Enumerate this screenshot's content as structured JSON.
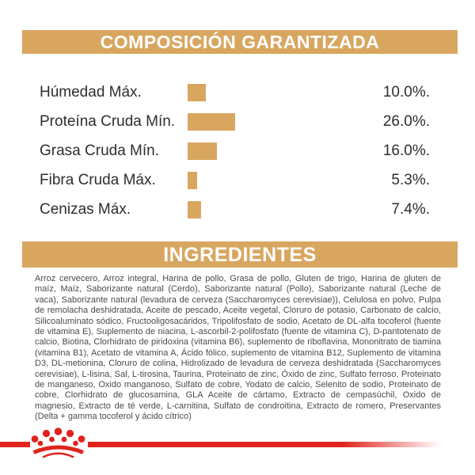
{
  "colors": {
    "tan": "#d9a660",
    "red": "#e0231c",
    "text_dark": "#2e2e2e",
    "text_body": "#4a4a4a"
  },
  "composition": {
    "title": "COMPOSICIÓN GARANTIZADA",
    "rows": [
      {
        "label": "Húmedad Máx.",
        "value": "10.0%.",
        "percent": 10.0
      },
      {
        "label": "Proteína Cruda Mín.",
        "value": "26.0%.",
        "percent": 26.0
      },
      {
        "label": "Grasa Cruda Mín.",
        "value": "16.0%.",
        "percent": 16.0
      },
      {
        "label": "Fibra Cruda Máx.",
        "value": "5.3%.",
        "percent": 5.3
      },
      {
        "label": "Cenizas Máx.",
        "value": "7.4%.",
        "percent": 7.4
      }
    ]
  },
  "ingredients": {
    "title": "INGREDIENTES",
    "text": "Arroz cervecero, Arroz integral, Harina de pollo, Grasa de pollo, Gluten de trigo, Harina de gluten de maíz, Maíz, Saborizante natural (Cerdo), Saborizante natural (Pollo), Saborizante natural (Leche de vaca), Saborizante natural (levadura de cerveza (Saccharomyces cerevisiae)), Celulosa en polvo, Pulpa de remolacha deshidratada, Aceite de pescado, Aceite vegetal, Cloruro de potasio, Carbonato de calcio, Silicoaluminato sódico, Fructooligosacáridos, Tripolifosfato de sodio, Acetato de DL-alfa tocoferol (fuente de vitamina E), Suplemento de niacina, L-ascorbil-2-polifosfato (fuente de vitamina C), D-pantotenato de calcio, Biotina, Clorhidrato de piridoxina (vitamina B6), suplemento de riboflavina, Mononitrato de tiamina (vitamina B1), Acetato de vitamina A, Ácido fólico, suplemento de vitamina B12, Suplemento de vitamina D3, DL-metionina, Cloruro de colina, Hidrolizado de levadura de cerveza deshidratada (Saccharomyces cerevisiae), L-lisina, Sal, L-tirosina, Taurina, Proteinato de zinc, Óxido de zinc, Sulfato ferroso, Proteinato de manganeso, Oxido manganoso, Sulfato de cobre, Yodato de calcio, Selenito de sodio, Proteinato de cobre, Clorhidrato de glucosamina, GLA Aceite de cártamo, Extracto de cempasúchil, Oxido de magnesio, Extracto de té verde, L-carnitina, Sulfato de condroitina, Extracto de romero, Preservantes (Delta + gamma tocoferol y ácido cítrico)"
  },
  "footer": {
    "brand_icon": "royal-canin-crown"
  }
}
